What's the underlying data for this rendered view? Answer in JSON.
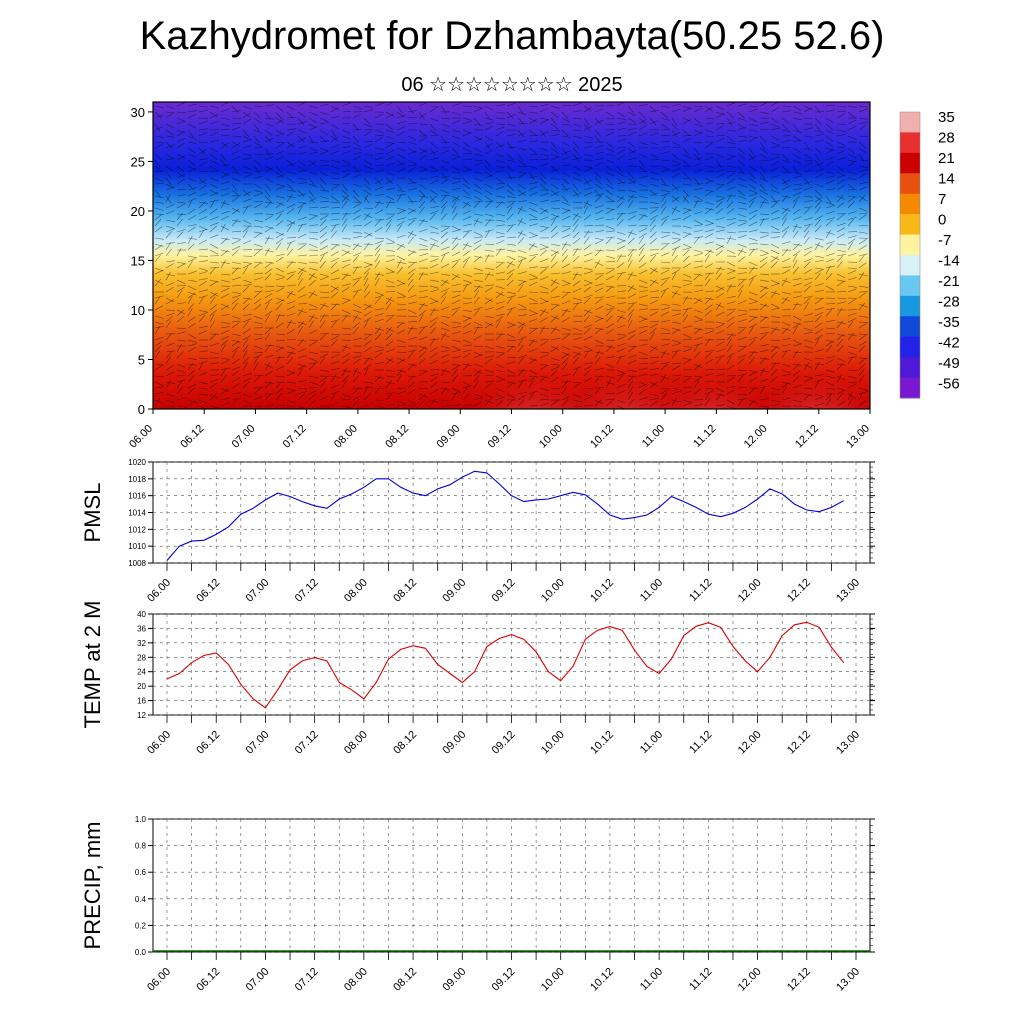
{
  "header": {
    "title": "Kazhydromet for Dzhambayta(50.25 52.6)",
    "subtitle": "06 ☆☆☆☆☆☆☆☆ 2025"
  },
  "chart_data": [
    {
      "type": "heatmap",
      "name": "temperature-cross-section",
      "y_ticks": [
        0,
        5,
        10,
        15,
        20,
        25,
        30
      ],
      "ylim": [
        0,
        31
      ],
      "x_ticks": [
        "06.00",
        "06.12",
        "07.00",
        "07.12",
        "08.00",
        "08.12",
        "09.00",
        "09.12",
        "10.00",
        "10.12",
        "11.00",
        "11.12",
        "12.00",
        "12.12",
        "13.00"
      ],
      "colorbar_labels": [
        "35",
        "28",
        "21",
        "14",
        "7",
        "0",
        "-7",
        "-14",
        "-21",
        "-28",
        "-35",
        "-42",
        "-49",
        "-56"
      ],
      "colorbar_colors": [
        "#f0b0b0",
        "#e83030",
        "#cc0000",
        "#e85010",
        "#f58a00",
        "#f8b818",
        "#fff3a0",
        "#d8f0f8",
        "#68c8f0",
        "#1898e0",
        "#1048d8",
        "#2222e8",
        "#5018d8",
        "#7818d0"
      ]
    },
    {
      "type": "line",
      "name": "pmsl",
      "ylabel": "PMSL",
      "ylim": [
        1008,
        1020
      ],
      "y_ticks": [
        1008,
        1010,
        1012,
        1014,
        1016,
        1018,
        1020
      ],
      "x_ticks": [
        "06.00",
        "06.12",
        "07.00",
        "07.12",
        "08.00",
        "08.12",
        "09.00",
        "09.12",
        "10.00",
        "10.12",
        "11.00",
        "11.12",
        "12.00",
        "12.12",
        "13.00"
      ],
      "color": "#0000dd",
      "x": [
        0,
        3,
        6,
        9,
        12,
        15,
        18,
        21,
        24,
        27,
        30,
        33,
        36,
        39,
        42,
        45,
        48,
        51,
        54,
        57,
        60,
        63,
        66,
        69,
        72,
        75,
        78,
        81,
        84,
        87,
        90,
        93,
        96,
        99,
        102,
        105,
        108,
        111,
        114,
        117,
        120,
        123,
        126,
        129,
        132,
        135,
        138,
        141,
        144,
        147,
        150,
        153,
        156,
        159,
        162,
        165
      ],
      "values": [
        1008.3,
        1010.0,
        1010.6,
        1010.7,
        1011.4,
        1012.3,
        1013.8,
        1014.5,
        1015.5,
        1016.3,
        1015.9,
        1015.3,
        1014.8,
        1014.5,
        1015.6,
        1016.2,
        1017.0,
        1018.0,
        1018.0,
        1017.0,
        1016.3,
        1016.0,
        1016.8,
        1017.3,
        1018.2,
        1018.9,
        1018.7,
        1017.4,
        1016.0,
        1015.3,
        1015.5,
        1015.6,
        1016.0,
        1016.4,
        1016.1,
        1015.0,
        1013.7,
        1013.2,
        1013.4,
        1013.7,
        1014.6,
        1015.9,
        1015.3,
        1014.6,
        1013.8,
        1013.5,
        1013.9,
        1014.6,
        1015.6,
        1016.8,
        1016.2,
        1015.0,
        1014.3,
        1014.1,
        1014.6,
        1015.4
      ]
    },
    {
      "type": "line",
      "name": "temp-2m",
      "ylabel": "TEMP at 2 M",
      "ylim": [
        12,
        40
      ],
      "y_ticks": [
        12,
        16,
        20,
        24,
        28,
        32,
        36,
        40
      ],
      "x_ticks": [
        "06.00",
        "06.12",
        "07.00",
        "07.12",
        "08.00",
        "08.12",
        "09.00",
        "09.12",
        "10.00",
        "10.12",
        "11.00",
        "11.12",
        "12.00",
        "12.12",
        "13.00"
      ],
      "color": "#dd0000",
      "x": [
        0,
        3,
        6,
        9,
        12,
        15,
        18,
        21,
        24,
        27,
        30,
        33,
        36,
        39,
        42,
        45,
        48,
        51,
        54,
        57,
        60,
        63,
        66,
        69,
        72,
        75,
        78,
        81,
        84,
        87,
        90,
        93,
        96,
        99,
        102,
        105,
        108,
        111,
        114,
        117,
        120,
        123,
        126,
        129,
        132,
        135,
        138,
        141,
        144,
        147,
        150,
        153,
        156,
        159,
        162,
        165
      ],
      "values": [
        22,
        23.5,
        26.5,
        28.5,
        29.2,
        26,
        20.5,
        16.5,
        14,
        19,
        24.5,
        27,
        27.9,
        27,
        21,
        19,
        16.5,
        21,
        27.5,
        30.2,
        31.2,
        30.5,
        26,
        23.5,
        21,
        24,
        31,
        33.2,
        34.3,
        33,
        29.5,
        24,
        21.5,
        25.5,
        33,
        35.5,
        36.5,
        35.5,
        30,
        25.5,
        23.5,
        27.5,
        34,
        36.6,
        37.6,
        36.3,
        31,
        27,
        24,
        28,
        34,
        37,
        37.7,
        36.3,
        30.8,
        26.5
      ]
    },
    {
      "type": "line",
      "name": "precip",
      "ylabel": "PRECIP, mm",
      "ylim": [
        0,
        1
      ],
      "y_ticks": [
        "0.0",
        "0.2",
        "0.4",
        "0.6",
        "0.8",
        "1.0"
      ],
      "x_ticks": [
        "06.00",
        "06.12",
        "07.00",
        "07.12",
        "08.00",
        "08.12",
        "09.00",
        "09.12",
        "10.00",
        "10.12",
        "11.00",
        "11.12",
        "12.00",
        "12.12",
        "13.00"
      ],
      "color": "#006600",
      "values": [
        0
      ]
    }
  ]
}
